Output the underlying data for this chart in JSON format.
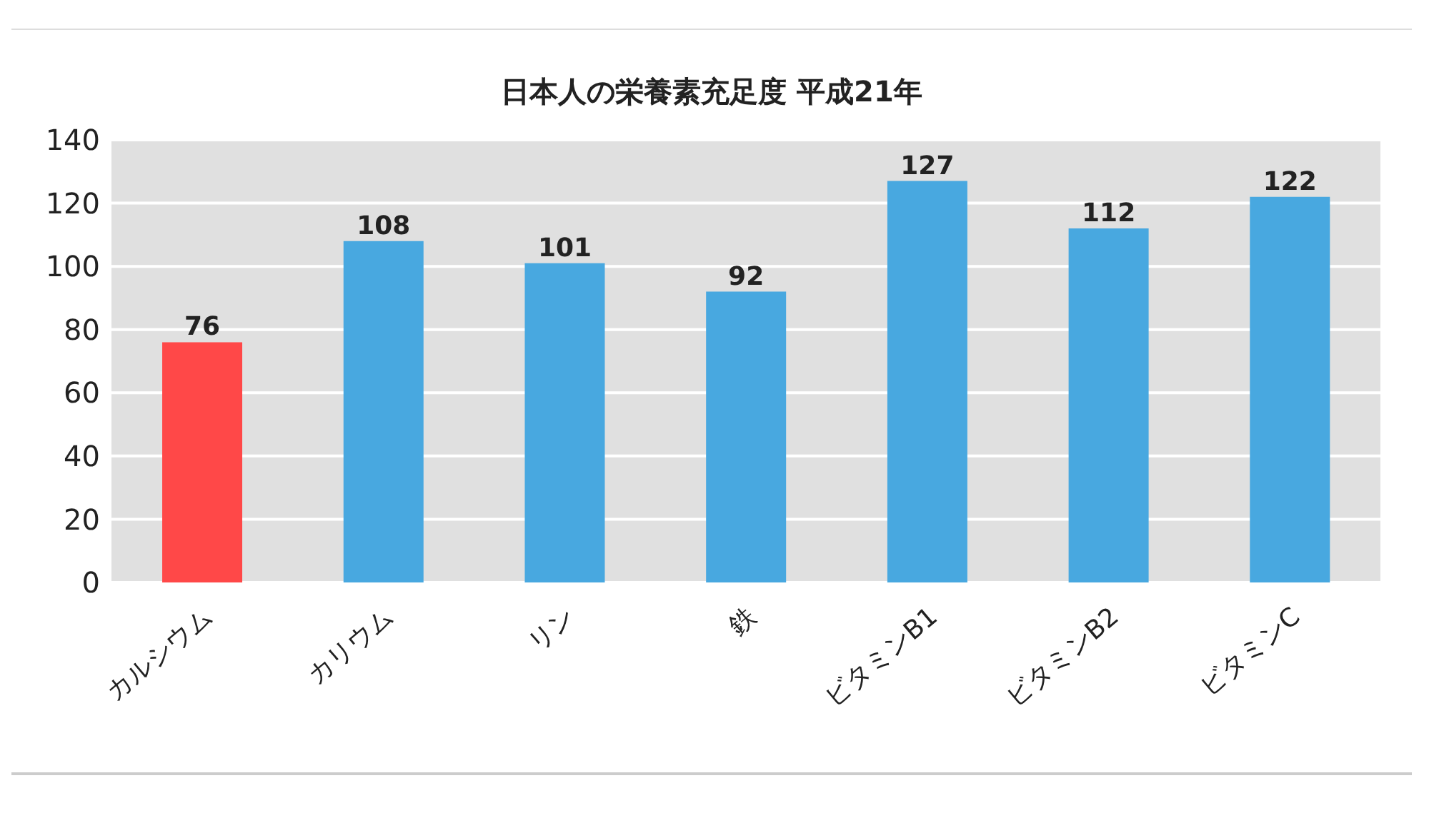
{
  "chart_data": {
    "type": "bar",
    "title": "日本人の栄養素充足度 平成21年",
    "categories": [
      "カルシウム",
      "カリウム",
      "リン",
      "鉄",
      "ビタミンB1",
      "ビタミンB2",
      "ビタミンC"
    ],
    "values": [
      76,
      108,
      101,
      92,
      127,
      112,
      122
    ],
    "colors": [
      "#ff4848",
      "#48a8e0",
      "#48a8e0",
      "#48a8e0",
      "#48a8e0",
      "#48a8e0",
      "#48a8e0"
    ],
    "ylim": [
      0,
      140
    ],
    "yticks": [
      0,
      20,
      40,
      60,
      80,
      100,
      120,
      140
    ],
    "grid": "y",
    "data_labels": true
  }
}
